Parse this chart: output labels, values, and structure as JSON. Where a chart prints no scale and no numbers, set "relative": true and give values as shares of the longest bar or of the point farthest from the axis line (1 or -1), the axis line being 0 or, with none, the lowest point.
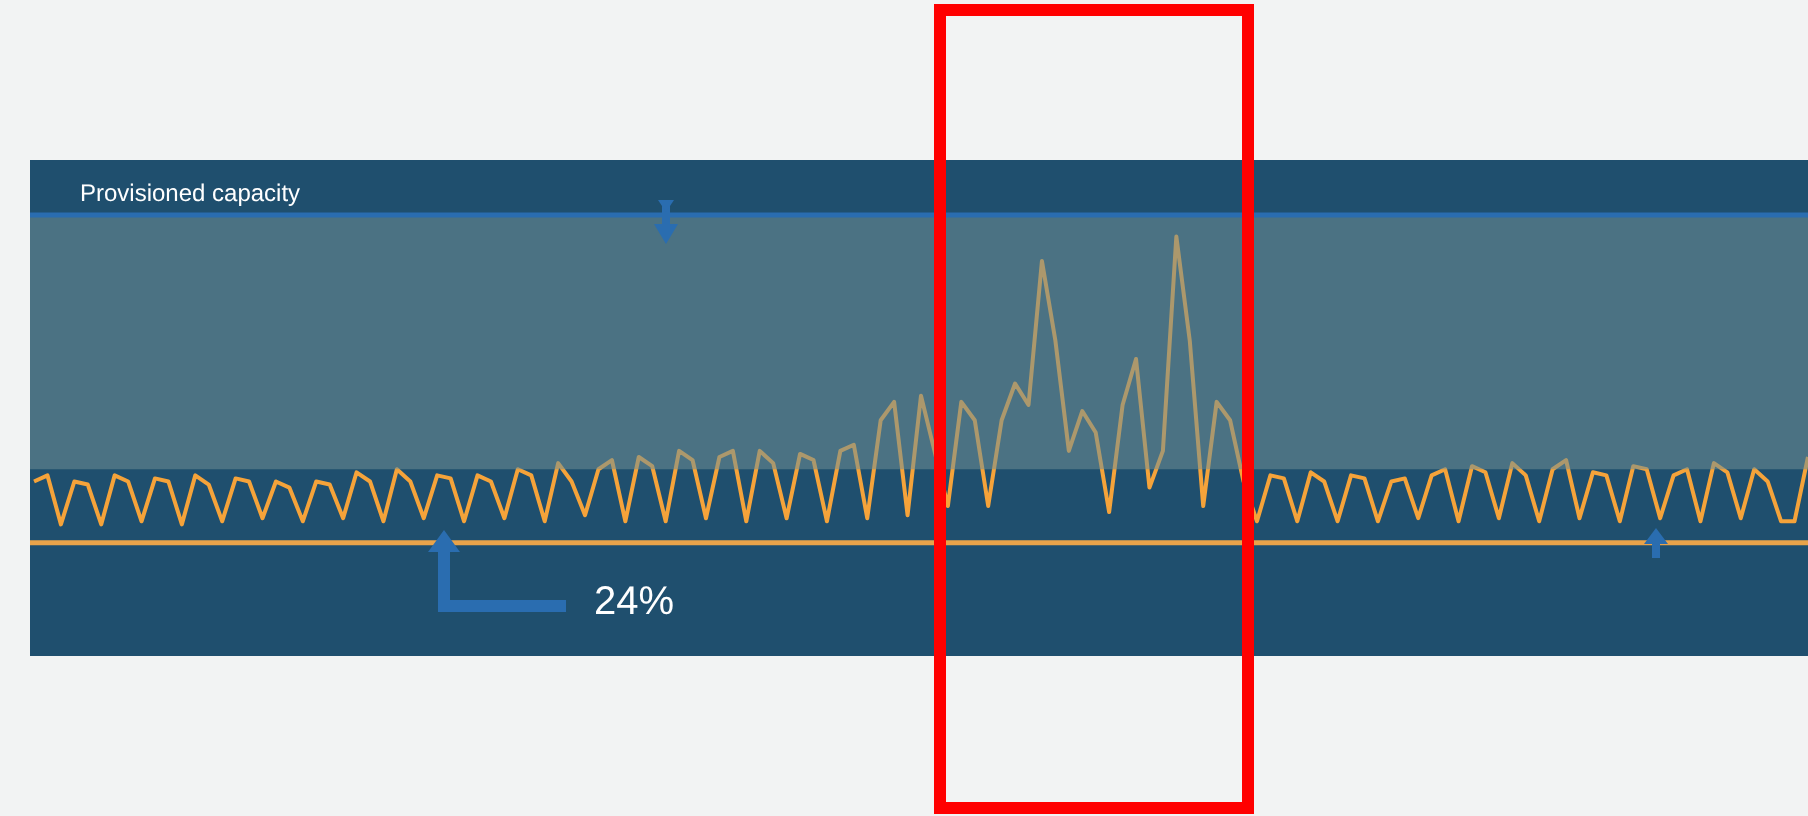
{
  "chart_data": {
    "type": "line",
    "relative": true,
    "categories": [
      null,
      null,
      null,
      null,
      null,
      null,
      null,
      null,
      null,
      null,
      null,
      null,
      null,
      null,
      null,
      null,
      null,
      null,
      null,
      null,
      null,
      null,
      null,
      null,
      null,
      null,
      null,
      null,
      null,
      null,
      null,
      null,
      null,
      null,
      null,
      null,
      null,
      null,
      null,
      null,
      null,
      null,
      null,
      null,
      null,
      null,
      null,
      null,
      null,
      null,
      null,
      null,
      null,
      null,
      null,
      null,
      null,
      null,
      null,
      null,
      null,
      null,
      null,
      null,
      null,
      null,
      null,
      null,
      null,
      null,
      null,
      null,
      null,
      null,
      null,
      null,
      null,
      null,
      null,
      null,
      null,
      null,
      null,
      null,
      null,
      null,
      null,
      null,
      null,
      null,
      null,
      null,
      null,
      null,
      null,
      null,
      null,
      null,
      null,
      null,
      null,
      null,
      null,
      null,
      null,
      null,
      null,
      null,
      null,
      null,
      null,
      null,
      null,
      null,
      null,
      null,
      null,
      null,
      null,
      null,
      null,
      null,
      null,
      null,
      null,
      null,
      null,
      null,
      null,
      null,
      null,
      null,
      null
    ],
    "series": [
      {
        "color": "#f5a33a",
        "values": [
          0.2,
          0.22,
          0.06,
          0.2,
          0.19,
          0.06,
          0.22,
          0.2,
          0.07,
          0.21,
          0.2,
          0.06,
          0.22,
          0.19,
          0.07,
          0.21,
          0.2,
          0.08,
          0.2,
          0.18,
          0.07,
          0.2,
          0.19,
          0.08,
          0.23,
          0.2,
          0.07,
          0.24,
          0.2,
          0.08,
          0.22,
          0.21,
          0.07,
          0.22,
          0.2,
          0.08,
          0.24,
          0.22,
          0.07,
          0.26,
          0.2,
          0.09,
          0.24,
          0.27,
          0.07,
          0.28,
          0.25,
          0.07,
          0.3,
          0.27,
          0.08,
          0.28,
          0.3,
          0.07,
          0.3,
          0.26,
          0.08,
          0.29,
          0.27,
          0.07,
          0.3,
          0.32,
          0.08,
          0.4,
          0.46,
          0.09,
          0.48,
          0.3,
          0.12,
          0.46,
          0.4,
          0.12,
          0.4,
          0.52,
          0.45,
          0.92,
          0.66,
          0.3,
          0.43,
          0.36,
          0.1,
          0.45,
          0.6,
          0.18,
          0.3,
          1.0,
          0.66,
          0.12,
          0.46,
          0.4,
          0.2,
          0.07,
          0.22,
          0.21,
          0.07,
          0.23,
          0.2,
          0.07,
          0.22,
          0.21,
          0.07,
          0.2,
          0.21,
          0.08,
          0.22,
          0.24,
          0.07,
          0.25,
          0.23,
          0.08,
          0.26,
          0.22,
          0.07,
          0.24,
          0.27,
          0.08,
          0.23,
          0.22,
          0.07,
          0.25,
          0.24,
          0.08,
          0.22,
          0.24,
          0.07,
          0.26,
          0.23,
          0.08,
          0.24,
          0.2,
          0.07,
          0.07,
          0.28
        ]
      }
    ],
    "ref_lines": [
      {
        "axis": "y",
        "value": 1.07,
        "label": "Provisioned capacity",
        "color": "#2a6db0"
      },
      {
        "axis": "y",
        "value": 0,
        "color": "#e8a34a"
      }
    ],
    "bands": [
      {
        "axis": "y",
        "from": 0.24,
        "to": 1.07,
        "color": "#6f8f95"
      }
    ],
    "annotations": [
      "24%"
    ]
  }
}
